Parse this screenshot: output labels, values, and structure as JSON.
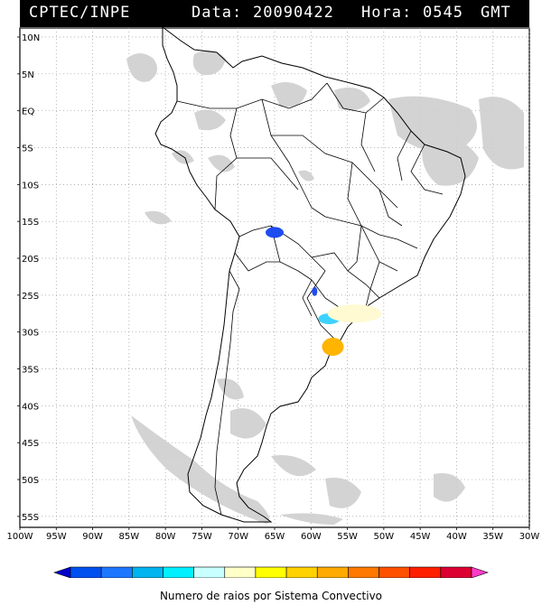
{
  "header": {
    "source": "CPTEC/INPE",
    "date_label": "Data:",
    "date_value": "20090422",
    "time_label": "Hora:",
    "time_value": "0545",
    "time_zone": "GMT"
  },
  "map": {
    "lat_labels": [
      "10N",
      "5N",
      "EQ",
      "5S",
      "10S",
      "15S",
      "20S",
      "25S",
      "30S",
      "35S",
      "40S",
      "45S",
      "50S",
      "55S"
    ],
    "lon_labels": [
      "100W",
      "95W",
      "90W",
      "85W",
      "80W",
      "75W",
      "70W",
      "65W",
      "60W",
      "55W",
      "50W",
      "45W",
      "40W",
      "35W",
      "30W"
    ],
    "lat_range": [
      10,
      -55
    ],
    "lon_range": [
      -100,
      -30
    ],
    "grid": "dotted",
    "colors": {
      "coast": "#000000",
      "cloud": "#c8c8c8",
      "grid": "#999999"
    }
  },
  "lightning_clusters": [
    {
      "name": "bolivia-cluster",
      "color": "#1e4cf0",
      "lon": -65.0,
      "lat": -16.5
    },
    {
      "name": "paraguay-cluster",
      "color": "#1e4cf0",
      "lon": -59.5,
      "lat": -24.5
    },
    {
      "name": "misiones-cluster",
      "color": "#3cd2ff",
      "lon": -57.5,
      "lat": -28.2
    },
    {
      "name": "south-brazil-cluster",
      "color": "#fffad2",
      "lon": -54.0,
      "lat": -27.5
    },
    {
      "name": "uruguay-cluster",
      "color": "#ffb400",
      "lon": -57.0,
      "lat": -32.0
    }
  ],
  "legend": {
    "ticks": [
      "1",
      "10",
      "15",
      "20",
      "25",
      "30",
      "35",
      "40",
      "50",
      "100",
      "150",
      "200",
      "250",
      "350"
    ],
    "colors": [
      "#0000c8",
      "#0050f0",
      "#1e78ff",
      "#00b4f0",
      "#00f0ff",
      "#c8ffff",
      "#ffffc8",
      "#ffff00",
      "#ffd200",
      "#ffaa00",
      "#ff7800",
      "#ff5000",
      "#ff1e00",
      "#dc0032",
      "#ff3cc8"
    ],
    "caption": "Numero de raios por Sistema Convectivo"
  }
}
